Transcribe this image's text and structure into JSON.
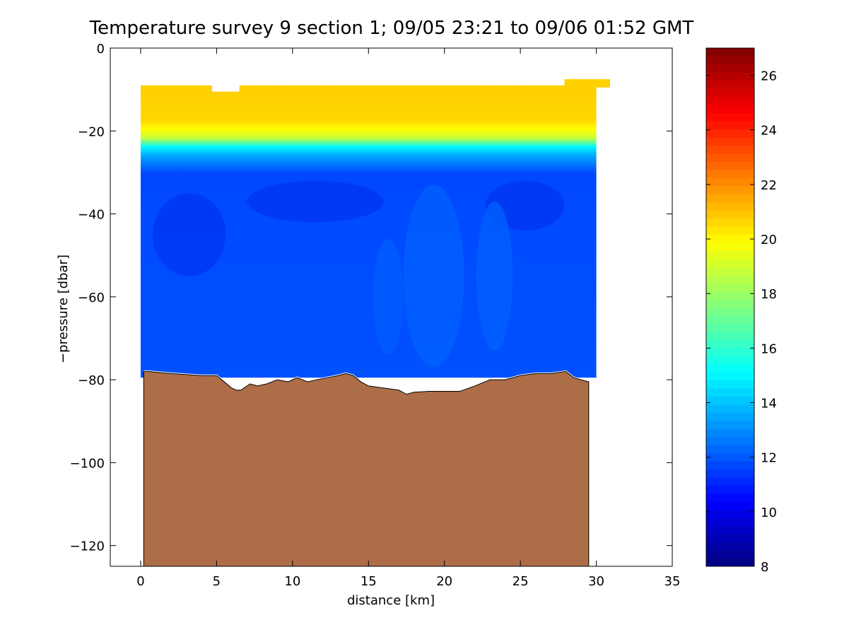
{
  "chart_data": {
    "type": "heatmap",
    "title": "Temperature survey 9 section 1; 09/05 23:21 to 09/06 01:52 GMT",
    "xlabel": "distance [km]",
    "ylabel": "−pressure [dbar]",
    "xlim": [
      -2,
      35
    ],
    "ylim": [
      -125,
      0
    ],
    "x_ticks": [
      0,
      5,
      10,
      15,
      20,
      25,
      30,
      35
    ],
    "x_tick_labels": [
      "0",
      "5",
      "10",
      "15",
      "20",
      "25",
      "30",
      "35"
    ],
    "y_ticks": [
      0,
      -20,
      -40,
      -60,
      -80,
      -100,
      -120
    ],
    "y_tick_labels": [
      "0",
      "−20",
      "−40",
      "−60",
      "−80",
      "−100",
      "−120"
    ],
    "colorbar": {
      "min": 8,
      "max": 27,
      "ticks": [
        8,
        10,
        12,
        14,
        16,
        18,
        20,
        22,
        24,
        26
      ],
      "tick_labels": [
        "8",
        "10",
        "12",
        "14",
        "16",
        "18",
        "20",
        "22",
        "24",
        "26"
      ],
      "colormap": "jet"
    },
    "survey_profile": {
      "x_range": [
        0,
        30
      ],
      "top_depth": [
        -9,
        -10,
        -9,
        -9,
        -9,
        -9,
        -9,
        -8
      ],
      "top_x": [
        0,
        4.7,
        6.5,
        12,
        20,
        27.9,
        29.9,
        30.9
      ],
      "bottom_depth_x": [
        0,
        8,
        12,
        14,
        16,
        18,
        20,
        22,
        25,
        28,
        30
      ],
      "bottom_depth": [
        -78,
        -80,
        -79,
        -78,
        -80,
        -82,
        -82,
        -82,
        -80,
        -79,
        -79
      ],
      "layers": [
        {
          "depth_range": [
            -10,
            -22
          ],
          "temp_range": [
            20,
            21
          ]
        },
        {
          "depth_range": [
            -22,
            -27
          ],
          "temp_range": [
            14,
            19
          ]
        },
        {
          "depth_range": [
            -27,
            -80
          ],
          "temp_range": [
            9.5,
            12
          ]
        }
      ]
    },
    "bathymetry": {
      "color": "#ad6d47",
      "x": [
        0.2,
        0.5,
        2,
        4,
        5,
        5.5,
        6,
        6.3,
        6.6,
        7.2,
        7.7,
        8.3,
        9,
        9.7,
        10.3,
        11,
        11.6,
        12.3,
        13,
        13.5,
        14,
        14.5,
        15,
        16,
        17,
        17.5,
        18,
        19,
        20,
        21,
        22,
        23,
        24,
        25,
        26,
        27,
        28,
        28.5,
        29,
        29.5
      ],
      "depth": [
        -78,
        -78,
        -78.5,
        -79,
        -79,
        -80.5,
        -82,
        -82.5,
        -82.5,
        -81,
        -81.5,
        -81,
        -80,
        -80.5,
        -79.5,
        -80.5,
        -80,
        -79.5,
        -79,
        -78.5,
        -79,
        -80.5,
        -81.5,
        -82,
        -82.5,
        -83.5,
        -83,
        -82.8,
        -82.8,
        -82.8,
        -81.5,
        -80,
        -80,
        -79,
        -78.5,
        -78.5,
        -78,
        -79.5,
        -80,
        -80.5
      ]
    }
  }
}
